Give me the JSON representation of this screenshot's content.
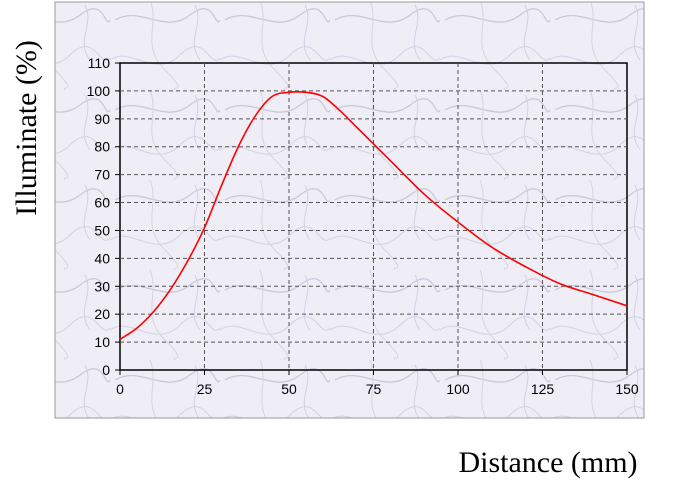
{
  "chart_data": {
    "type": "line",
    "xlabel": "Distance (mm)",
    "ylabel": "Illuminate (%)",
    "xlim": [
      0,
      150
    ],
    "ylim": [
      0,
      110
    ],
    "x_ticks": [
      "0",
      "25",
      "50",
      "75",
      "100",
      "125",
      "150"
    ],
    "y_ticks": [
      "0",
      "10",
      "20",
      "30",
      "40",
      "50",
      "60",
      "70",
      "80",
      "90",
      "100",
      "110"
    ],
    "grid": true,
    "series": [
      {
        "color": "#ff0000",
        "x": [
          0,
          5,
          10,
          15,
          20,
          25,
          30,
          35,
          40,
          45,
          50,
          55,
          60,
          65,
          70,
          75,
          80,
          90,
          100,
          110,
          120,
          130,
          140,
          150
        ],
        "y": [
          11,
          15,
          21,
          29,
          39,
          51,
          66,
          80,
          91,
          98,
          99.5,
          99.5,
          98,
          93,
          87,
          81,
          75,
          63,
          53,
          44,
          37,
          31,
          27,
          23
        ]
      }
    ]
  },
  "colors": {
    "plot_frame_bg": "#efeef6",
    "plot_area_bg": "#f5f4fa",
    "grid": "#555555",
    "line": "#ff0000"
  }
}
